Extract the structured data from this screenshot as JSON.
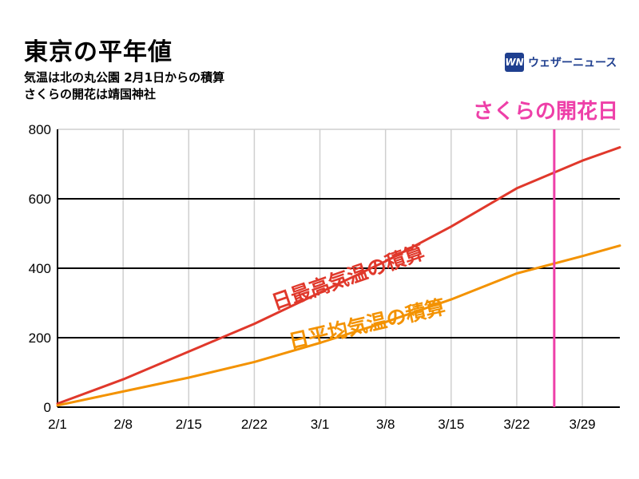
{
  "header": {
    "title": "東京の平年値",
    "subtitle_1": "気温は北の丸公園 2月1日からの積算",
    "subtitle_2": "さくらの開花は靖国神社"
  },
  "logo": {
    "mark": "WN",
    "text": "ウェザーニュース",
    "color": "#1f3f8f"
  },
  "chart_data": {
    "type": "line",
    "title": "東京の平年値",
    "xlabel": "",
    "ylabel": "",
    "x_ticks": [
      "2/1",
      "2/8",
      "2/15",
      "2/22",
      "3/1",
      "3/8",
      "3/15",
      "3/22",
      "3/29"
    ],
    "y_ticks": [
      0,
      200,
      400,
      600,
      800
    ],
    "xlim": [
      0,
      60
    ],
    "ylim": [
      0,
      800
    ],
    "x_unit": "days since 2/1",
    "series": [
      {
        "name": "日最高気温の積算",
        "color": "#e0382b",
        "x": [
          0,
          7,
          14,
          21,
          28,
          35,
          42,
          49,
          56,
          60
        ],
        "values": [
          10,
          80,
          160,
          240,
          330,
          420,
          520,
          630,
          710,
          748
        ]
      },
      {
        "name": "日平均気温の積算",
        "color": "#f39200",
        "x": [
          0,
          7,
          14,
          21,
          28,
          35,
          42,
          49,
          56,
          60
        ],
        "values": [
          5,
          45,
          85,
          130,
          185,
          245,
          310,
          385,
          435,
          465
        ]
      }
    ],
    "annotations": [
      {
        "label": "さくらの開花日",
        "x": 53,
        "color": "#ee3fa8"
      }
    ],
    "grid": true
  }
}
